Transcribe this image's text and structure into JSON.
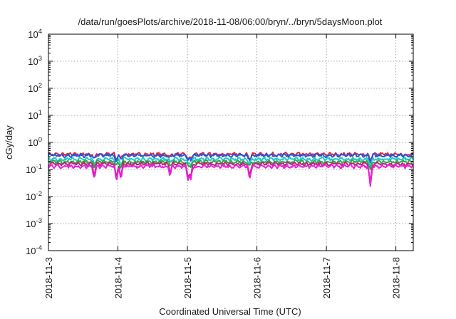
{
  "chart_data": {
    "type": "line",
    "title": "/data/run/goesPlots/archive/2018-11-08/06:00/bryn/../bryn/5daysMoon.plot",
    "xlabel": "Coordinated Universal Time (UTC)",
    "ylabel": "cGy/day",
    "y_scale": "log",
    "ylim": [
      0.0001,
      10000
    ],
    "xlim": [
      "2018-11-03T00:00",
      "2018-11-08T06:00"
    ],
    "x_tick_labels": [
      "2018-11-3",
      "2018-11-4",
      "2018-11-5",
      "2018-11-6",
      "2018-11-7",
      "2018-11-8"
    ],
    "y_ticks": [
      {
        "base": "10",
        "exp": "-4"
      },
      {
        "base": "10",
        "exp": "-3"
      },
      {
        "base": "10",
        "exp": "-2"
      },
      {
        "base": "10",
        "exp": "-1"
      },
      {
        "base": "10",
        "exp": "0"
      },
      {
        "base": "10",
        "exp": "1"
      },
      {
        "base": "10",
        "exp": "2"
      },
      {
        "base": "10",
        "exp": "3"
      },
      {
        "base": "10",
        "exp": "4"
      }
    ],
    "grid": true,
    "dips": [
      {
        "x": "2018-11-03T15:50",
        "depth": 0.45
      },
      {
        "x": "2018-11-03T23:30",
        "depth": 0.55
      },
      {
        "x": "2018-11-04T01:00",
        "depth": 0.5
      },
      {
        "x": "2018-11-04T18:00",
        "depth": 0.3
      },
      {
        "x": "2018-11-05T00:10",
        "depth": 0.5
      },
      {
        "x": "2018-11-05T01:10",
        "depth": 0.5
      },
      {
        "x": "2018-11-05T21:30",
        "depth": 0.5
      },
      {
        "x": "2018-11-07T15:10",
        "depth": 0.8
      }
    ],
    "series": [
      {
        "color": "#e8242a",
        "base": 0.36
      },
      {
        "color": "#2255e6",
        "base": 0.33
      },
      {
        "color": "#20c8c8",
        "base": 0.24
      },
      {
        "color": "#2da84a",
        "base": 0.19
      },
      {
        "color": "#b22a6a",
        "base": 0.16
      },
      {
        "color": "#f01ce0",
        "base": 0.13
      }
    ]
  }
}
